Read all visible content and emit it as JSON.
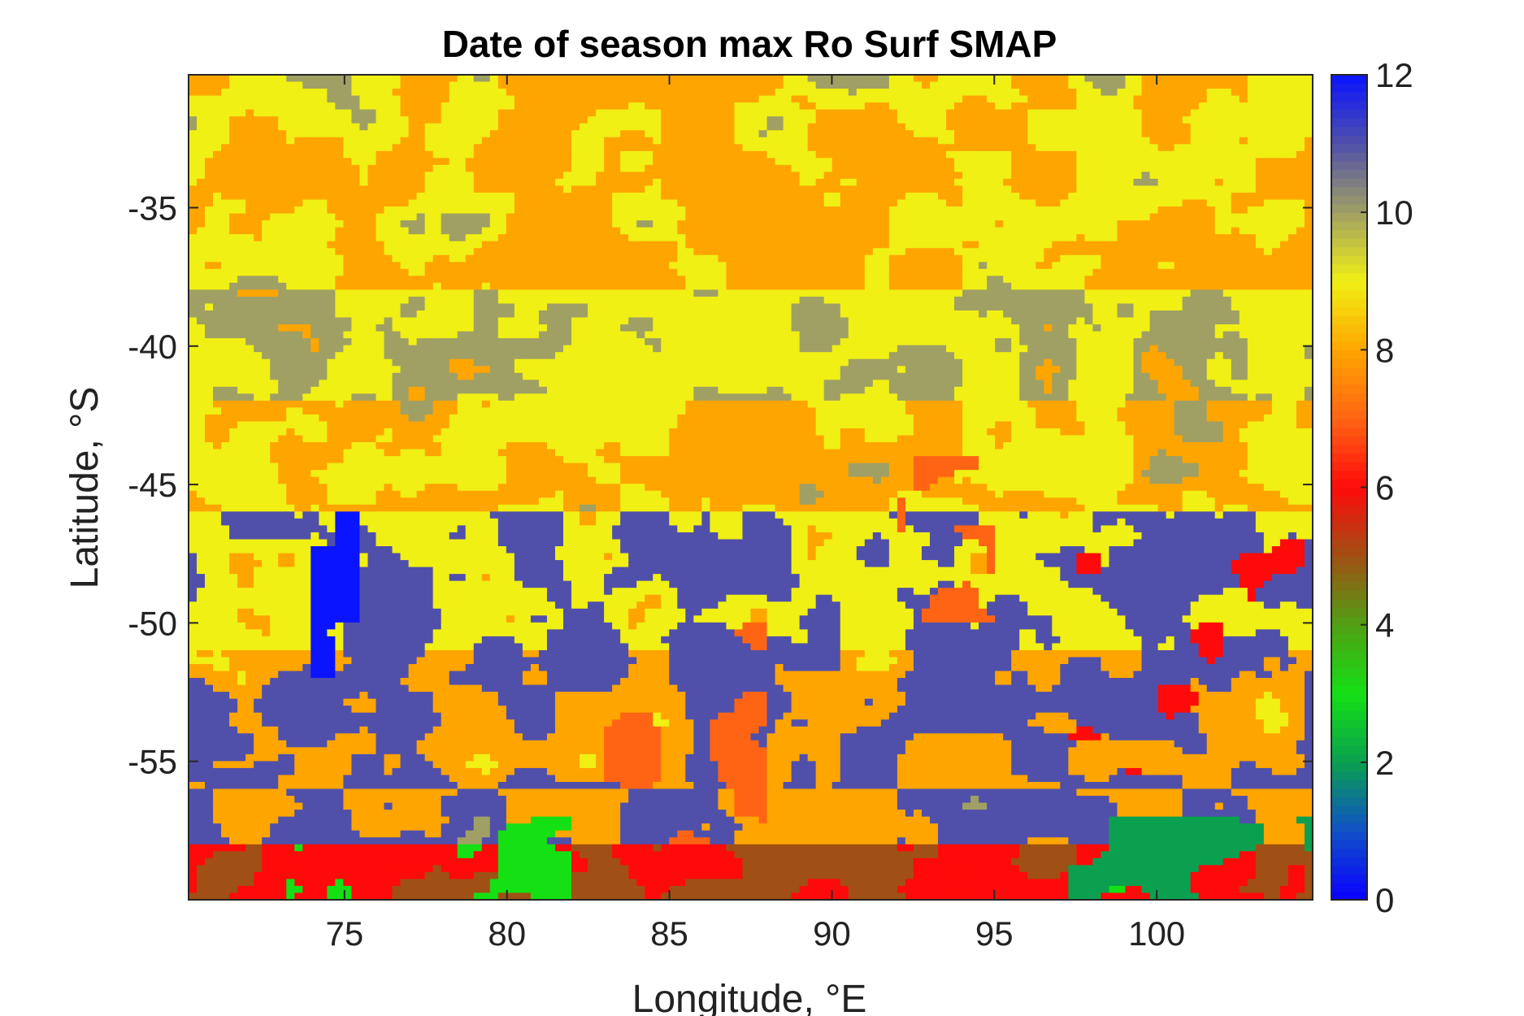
{
  "chart_data": {
    "type": "heatmap",
    "title": "Date of season max Ro Surf SMAP",
    "xlabel": "Longitude, °E",
    "ylabel": "Latitude, °S",
    "xlim": [
      70.2,
      104.8
    ],
    "ylim": [
      -60,
      -30.2
    ],
    "xticks": [
      75,
      80,
      85,
      90,
      95,
      100
    ],
    "xtick_labels": [
      "75",
      "80",
      "85",
      "90",
      "95",
      "100"
    ],
    "yticks": [
      -35,
      -40,
      -45,
      -50,
      -55
    ],
    "ytick_labels": [
      "-35",
      "-40",
      "-45",
      "-50",
      "-55"
    ],
    "grid": false,
    "grid_resolution_deg": 0.25,
    "colorbar": {
      "position": "right",
      "range": [
        0,
        12
      ],
      "ticks": [
        0,
        2,
        4,
        6,
        8,
        10,
        12
      ],
      "tick_labels": [
        "0",
        "2",
        "4",
        "6",
        "8",
        "10",
        "12"
      ],
      "colormap": [
        {
          "value": 0,
          "color": "#0a00ff"
        },
        {
          "value": 1,
          "color": "#1050c8"
        },
        {
          "value": 2,
          "color": "#0aa050"
        },
        {
          "value": 3,
          "color": "#14e014"
        },
        {
          "value": 4,
          "color": "#50a014"
        },
        {
          "value": 5,
          "color": "#a05014"
        },
        {
          "value": 6,
          "color": "#ff0a0a"
        },
        {
          "value": 7,
          "color": "#ff6414"
        },
        {
          "value": 8,
          "color": "#ffa500"
        },
        {
          "value": 9,
          "color": "#f0f014"
        },
        {
          "value": 10,
          "color": "#a0a064"
        },
        {
          "value": 11,
          "color": "#5050aa"
        },
        {
          "value": 12,
          "color": "#0a14ff"
        }
      ]
    },
    "regions": [
      {
        "lat_from": -30.2,
        "lat_to": -33,
        "dominant": 8,
        "secondary": 9,
        "rare": 10
      },
      {
        "lat_from": -33,
        "lat_to": -38,
        "dominant": 8,
        "secondary": 9,
        "rare": 10
      },
      {
        "lat_from": -38,
        "lat_to": -42,
        "dominant": 9,
        "secondary": 10,
        "rare": 8
      },
      {
        "lat_from": -42,
        "lat_to": -46,
        "dominant": 9,
        "secondary": 8,
        "rare": 10
      },
      {
        "lat_from": -46,
        "lat_to": -51,
        "dominant": 11,
        "secondary": 9,
        "rare": 8
      },
      {
        "lat_from": -51,
        "lat_to": -56,
        "dominant": 11,
        "secondary": 8,
        "rare": 9
      },
      {
        "lat_from": -56,
        "lat_to": -58,
        "dominant": 8,
        "secondary": 11,
        "rare": 10
      },
      {
        "lat_from": -58,
        "lat_to": -60,
        "dominant": 5,
        "secondary": 6,
        "rare": 3
      }
    ]
  }
}
